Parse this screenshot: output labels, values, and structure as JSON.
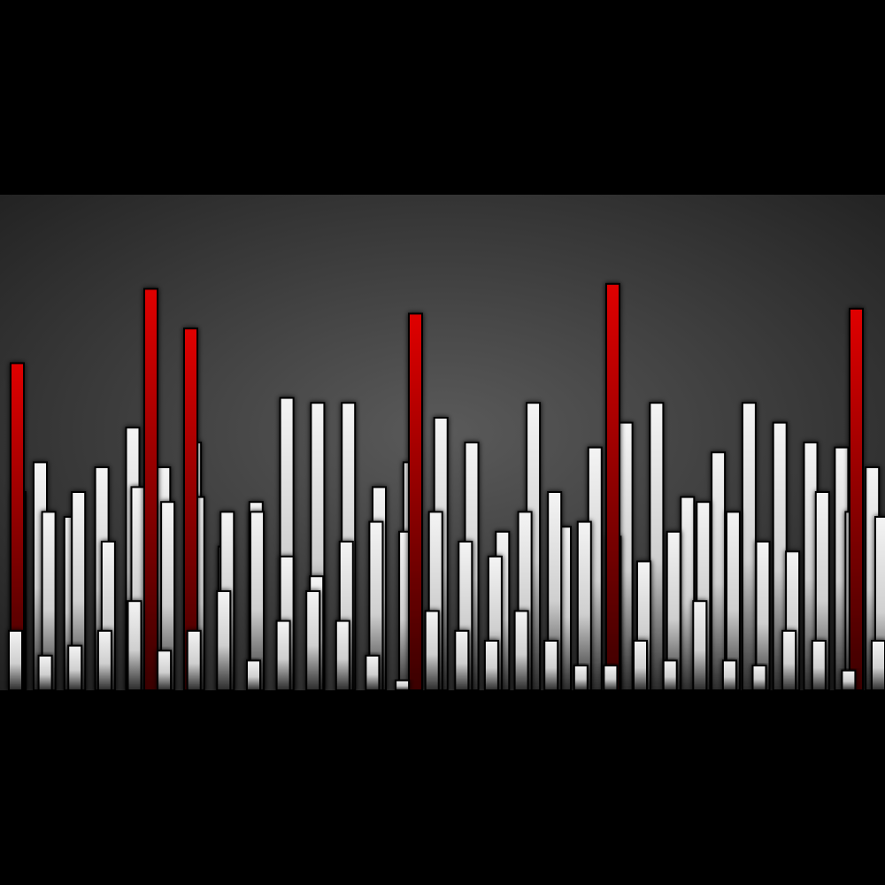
{
  "scene": {
    "description_visible_text": "",
    "colors": {
      "letterbox": "#000000",
      "panel_center": "#5a5a5a",
      "panel_edge": "#1e1e1e",
      "bar_light": "#f4f4f4",
      "bar_dark": "#2a2a2a",
      "accent_red": "#e00000",
      "accent_red_dark": "#3a0000"
    },
    "red_levels": [
      0.66,
      0.81,
      0.73,
      0.76,
      0.82,
      0.77
    ],
    "back_levels": [
      0.46,
      0.35,
      0.45,
      0.53,
      0.45,
      0.5,
      0.29,
      0.38,
      0.59,
      0.58,
      0.58,
      0.41,
      0.46,
      0.55,
      0.5,
      0.32,
      0.58,
      0.33,
      0.49,
      0.54,
      0.58,
      0.39,
      0.48,
      0.58,
      0.54,
      0.5,
      0.49,
      0.45,
      0.51
    ],
    "mid_levels": [
      0.4,
      0.36,
      0.4,
      0.3,
      0.41,
      0.38,
      0.39,
      0.36,
      0.36,
      0.27,
      0.23,
      0.3,
      0.34,
      0.32,
      0.36,
      0.3,
      0.27,
      0.36,
      0.4,
      0.34,
      0.31,
      0.26,
      0.32,
      0.38,
      0.36,
      0.3,
      0.28,
      0.4,
      0.36,
      0.35
    ],
    "front_levels": [
      0.12,
      0.07,
      0.09,
      0.12,
      0.18,
      0.08,
      0.12,
      0.2,
      0.06,
      0.14,
      0.2,
      0.14,
      0.07,
      0.02,
      0.16,
      0.12,
      0.1,
      0.16,
      0.1,
      0.05,
      0.05,
      0.1,
      0.06,
      0.18,
      0.06,
      0.05,
      0.12,
      0.1,
      0.04,
      0.1
    ]
  }
}
